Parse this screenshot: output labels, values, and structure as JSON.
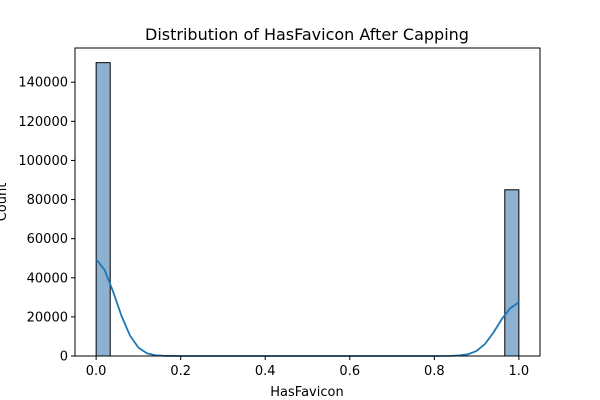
{
  "chart_data": {
    "type": "bar",
    "title": "Distribution of HasFavicon After Capping",
    "xlabel": "HasFavicon",
    "ylabel": "Count",
    "xlim": [
      -0.05,
      1.05
    ],
    "ylim": [
      0,
      157500
    ],
    "xticks": [
      0.0,
      0.2,
      0.4,
      0.6,
      0.8,
      1.0
    ],
    "xtick_labels": [
      "0.0",
      "0.2",
      "0.4",
      "0.6",
      "0.8",
      "1.0"
    ],
    "yticks": [
      0,
      20000,
      40000,
      60000,
      80000,
      100000,
      120000,
      140000
    ],
    "ytick_labels": [
      "0",
      "20000",
      "40000",
      "60000",
      "80000",
      "100000",
      "120000",
      "140000"
    ],
    "bins": [
      {
        "x0": 0.0,
        "x1": 0.0333,
        "count": 150000
      },
      {
        "x0": 0.9667,
        "x1": 1.0,
        "count": 85000
      }
    ],
    "kde": {
      "x": [
        0.0,
        0.02,
        0.04,
        0.06,
        0.08,
        0.1,
        0.12,
        0.14,
        0.16,
        0.2,
        0.3,
        0.4,
        0.5,
        0.6,
        0.7,
        0.8,
        0.84,
        0.86,
        0.88,
        0.9,
        0.92,
        0.94,
        0.96,
        0.98,
        1.0
      ],
      "y": [
        49500,
        44000,
        33000,
        20500,
        10500,
        4300,
        1400,
        400,
        100,
        0,
        0,
        0,
        0,
        0,
        0,
        0,
        80,
        300,
        900,
        2600,
        6200,
        12000,
        19000,
        24500,
        27500
      ]
    },
    "colors": {
      "bar_fill": "#8db2d1",
      "bar_edge": "#000000",
      "kde_line": "#1f77b4"
    },
    "grid": false,
    "legend": "none"
  }
}
